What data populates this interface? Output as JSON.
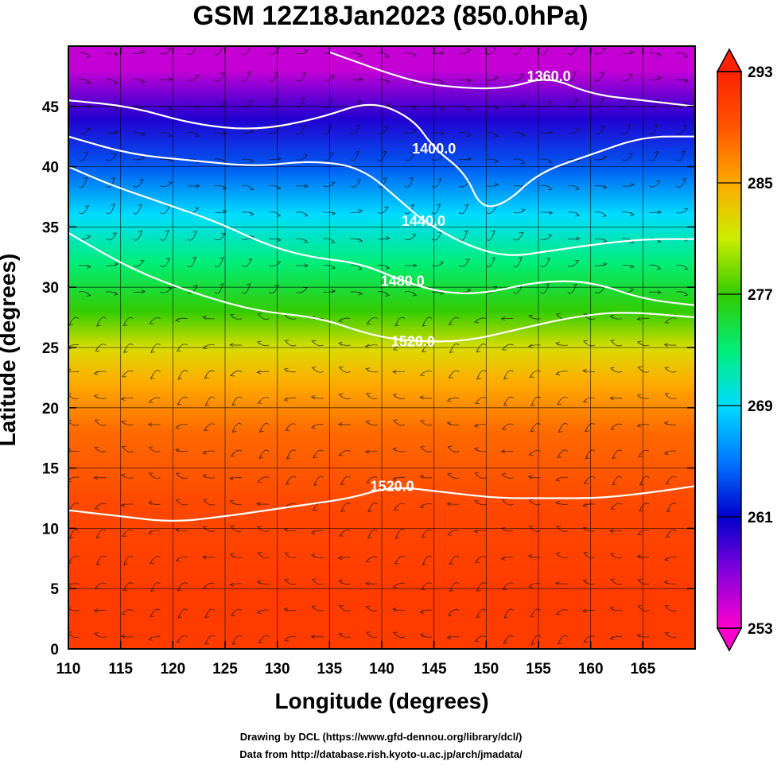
{
  "title": "GSM 12Z18Jan2023 (850.0hPa)",
  "credits": [
    "Drawing by DCL (https://www.gfd-dennou.org/library/dcl/)",
    "Data from http://database.rish.kyoto-u.ac.jp/arch/jmadata/"
  ],
  "chart_data": {
    "type": "heatmap",
    "title": "GSM 12Z18Jan2023 (850.0hPa)",
    "xlabel": "Longitude (degrees)",
    "ylabel": "Latitude  (degrees)",
    "xlim": [
      110,
      170
    ],
    "ylim": [
      0,
      50
    ],
    "x_ticks": [
      110,
      115,
      120,
      125,
      130,
      135,
      140,
      145,
      150,
      155,
      160,
      165
    ],
    "y_ticks": [
      0,
      5,
      10,
      15,
      20,
      25,
      30,
      35,
      40,
      45
    ],
    "grid": true,
    "colorbar": {
      "min": 253,
      "max": 293,
      "ticks": [
        253,
        261,
        269,
        277,
        285,
        293
      ],
      "stops": [
        "#ff00cc",
        "#8800dd",
        "#0000cc",
        "#0077ff",
        "#00ddff",
        "#00ee77",
        "#33cc00",
        "#ccee00",
        "#ffaa00",
        "#ff5500",
        "#ff2200"
      ],
      "extend": "both"
    },
    "field": "temperature (K)",
    "temperature_profile": [
      {
        "lat": 48,
        "value": 255
      },
      {
        "lat": 44,
        "value": 260
      },
      {
        "lat": 40,
        "value": 264
      },
      {
        "lat": 36,
        "value": 269
      },
      {
        "lat": 32,
        "value": 273
      },
      {
        "lat": 28,
        "value": 277
      },
      {
        "lat": 25,
        "value": 282
      },
      {
        "lat": 22,
        "value": 285
      },
      {
        "lat": 18,
        "value": 288
      },
      {
        "lat": 12,
        "value": 290
      },
      {
        "lat": 5,
        "value": 291
      },
      {
        "lat": 0,
        "value": 291
      }
    ],
    "contours": [
      {
        "value": 1360,
        "label": "1360.0",
        "points": [
          [
            135,
            49.5
          ],
          [
            143,
            47
          ],
          [
            148,
            46.5
          ],
          [
            152,
            46.5
          ],
          [
            156,
            47.5
          ],
          [
            160,
            46
          ],
          [
            165,
            45.5
          ],
          [
            170,
            45
          ]
        ]
      },
      {
        "value": 1400,
        "label": "1400.0",
        "points": [
          [
            110,
            45.5
          ],
          [
            116,
            45
          ],
          [
            122,
            43.5
          ],
          [
            128,
            43
          ],
          [
            134,
            44
          ],
          [
            139,
            45.5
          ],
          [
            143,
            44
          ],
          [
            145,
            41.5
          ],
          [
            148,
            39.5
          ],
          [
            149.5,
            36.5
          ],
          [
            152,
            37
          ],
          [
            155,
            39.5
          ],
          [
            160,
            41
          ],
          [
            165,
            42.5
          ],
          [
            170,
            42.5
          ]
        ]
      },
      {
        "value": 1440,
        "label": "1440.0",
        "points": [
          [
            110,
            42.5
          ],
          [
            116,
            41
          ],
          [
            122,
            40.5
          ],
          [
            128,
            40
          ],
          [
            133,
            40.5
          ],
          [
            138,
            40
          ],
          [
            142,
            37
          ],
          [
            144,
            35.5
          ],
          [
            148,
            33.5
          ],
          [
            152,
            32.5
          ],
          [
            156,
            33
          ],
          [
            160,
            33.5
          ],
          [
            165,
            34
          ],
          [
            170,
            34
          ]
        ]
      },
      {
        "value": 1480,
        "label": "1480.0",
        "points": [
          [
            110,
            40
          ],
          [
            114,
            38.5
          ],
          [
            119,
            37
          ],
          [
            124,
            35.5
          ],
          [
            129,
            33.5
          ],
          [
            133,
            32.5
          ],
          [
            138,
            32
          ],
          [
            142,
            30.5
          ],
          [
            146,
            29.5
          ],
          [
            150,
            29.5
          ],
          [
            155,
            30.5
          ],
          [
            160,
            30.5
          ],
          [
            165,
            29
          ],
          [
            170,
            28.5
          ]
        ]
      },
      {
        "value": 1520,
        "label": "1520.0",
        "points": [
          [
            110,
            34.5
          ],
          [
            116,
            31.5
          ],
          [
            122,
            29.5
          ],
          [
            128,
            28
          ],
          [
            134,
            27.5
          ],
          [
            139,
            26
          ],
          [
            143,
            25.5
          ],
          [
            148,
            25.5
          ],
          [
            153,
            26.5
          ],
          [
            158,
            27.5
          ],
          [
            163,
            28
          ],
          [
            170,
            27.5
          ]
        ]
      },
      {
        "value": 1520,
        "label": "1520.0",
        "points": [
          [
            110,
            11.5
          ],
          [
            115,
            11
          ],
          [
            120,
            10.5
          ],
          [
            125,
            11
          ],
          [
            129,
            11.5
          ],
          [
            133,
            12
          ],
          [
            137,
            12.5
          ],
          [
            141,
            13.5
          ],
          [
            146,
            13
          ],
          [
            151,
            12.5
          ],
          [
            156,
            12.5
          ],
          [
            161,
            12.5
          ],
          [
            166,
            13
          ],
          [
            170,
            13.5
          ]
        ]
      }
    ],
    "wind_field": "streamlines, predominantly easterly in the tropics, westerly north of 30N"
  }
}
